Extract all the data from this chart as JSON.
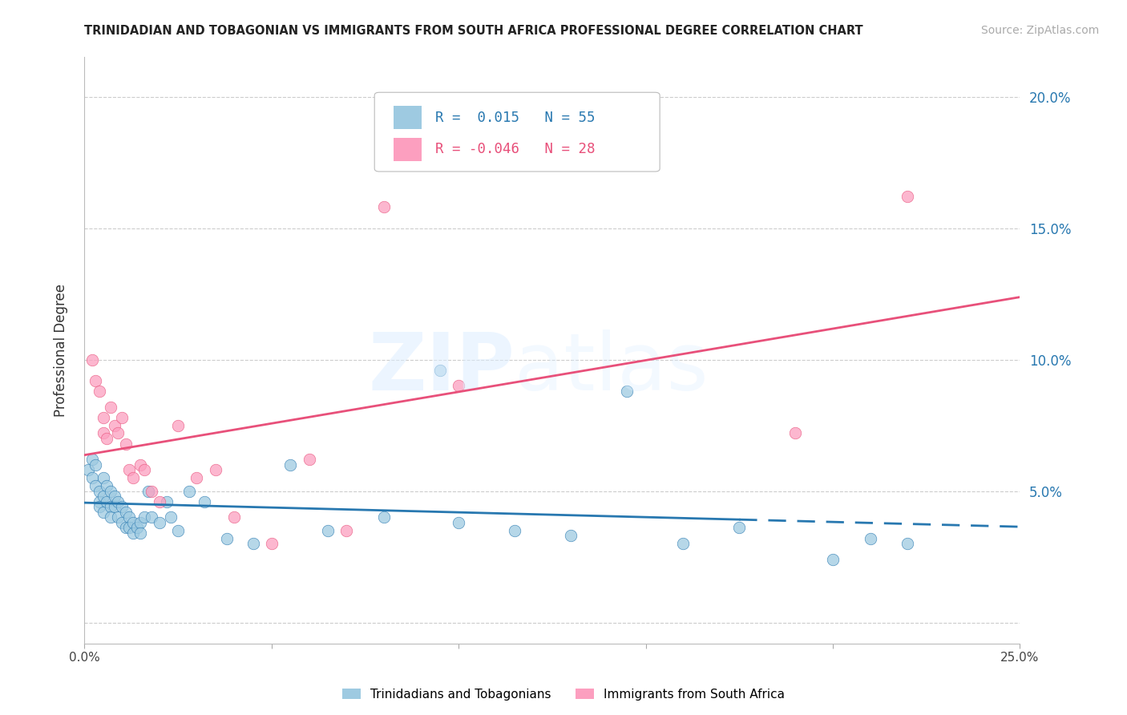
{
  "title": "TRINIDADIAN AND TOBAGONIAN VS IMMIGRANTS FROM SOUTH AFRICA PROFESSIONAL DEGREE CORRELATION CHART",
  "source": "Source: ZipAtlas.com",
  "ylabel": "Professional Degree",
  "xlim": [
    0.0,
    0.25
  ],
  "ylim": [
    -0.008,
    0.215
  ],
  "ytick_values": [
    0.0,
    0.05,
    0.1,
    0.15,
    0.2
  ],
  "ytick_labels": [
    "",
    "5.0%",
    "10.0%",
    "15.0%",
    "20.0%"
  ],
  "xtick_values": [
    0.0,
    0.05,
    0.1,
    0.15,
    0.2,
    0.25
  ],
  "xtick_labels": [
    "0.0%",
    "",
    "",
    "",
    "",
    "25.0%"
  ],
  "legend1_label": "Trinidadians and Tobagonians",
  "legend2_label": "Immigrants from South Africa",
  "r1": "0.015",
  "n1": "55",
  "r2": "-0.046",
  "n2": "28",
  "color_blue": "#9ecae1",
  "color_pink": "#fc9fbf",
  "color_blue_dark": "#2878b0",
  "color_pink_dark": "#e8507a",
  "blue_x": [
    0.001,
    0.002,
    0.002,
    0.003,
    0.003,
    0.004,
    0.004,
    0.004,
    0.005,
    0.005,
    0.005,
    0.006,
    0.006,
    0.007,
    0.007,
    0.007,
    0.008,
    0.008,
    0.009,
    0.009,
    0.01,
    0.01,
    0.011,
    0.011,
    0.012,
    0.012,
    0.013,
    0.013,
    0.014,
    0.015,
    0.015,
    0.016,
    0.017,
    0.018,
    0.02,
    0.022,
    0.023,
    0.025,
    0.028,
    0.032,
    0.038,
    0.045,
    0.055,
    0.065,
    0.08,
    0.095,
    0.1,
    0.115,
    0.13,
    0.145,
    0.16,
    0.175,
    0.2,
    0.21,
    0.22
  ],
  "blue_y": [
    0.058,
    0.062,
    0.055,
    0.06,
    0.052,
    0.05,
    0.046,
    0.044,
    0.055,
    0.048,
    0.042,
    0.052,
    0.046,
    0.05,
    0.044,
    0.04,
    0.048,
    0.044,
    0.046,
    0.04,
    0.044,
    0.038,
    0.042,
    0.036,
    0.04,
    0.036,
    0.038,
    0.034,
    0.036,
    0.038,
    0.034,
    0.04,
    0.05,
    0.04,
    0.038,
    0.046,
    0.04,
    0.035,
    0.05,
    0.046,
    0.032,
    0.03,
    0.06,
    0.035,
    0.04,
    0.096,
    0.038,
    0.035,
    0.033,
    0.088,
    0.03,
    0.036,
    0.024,
    0.032,
    0.03
  ],
  "pink_x": [
    0.002,
    0.003,
    0.004,
    0.005,
    0.005,
    0.006,
    0.007,
    0.008,
    0.009,
    0.01,
    0.011,
    0.012,
    0.013,
    0.015,
    0.016,
    0.018,
    0.02,
    0.025,
    0.03,
    0.035,
    0.04,
    0.05,
    0.06,
    0.07,
    0.08,
    0.1,
    0.19,
    0.22
  ],
  "pink_y": [
    0.1,
    0.092,
    0.088,
    0.078,
    0.072,
    0.07,
    0.082,
    0.075,
    0.072,
    0.078,
    0.068,
    0.058,
    0.055,
    0.06,
    0.058,
    0.05,
    0.046,
    0.075,
    0.055,
    0.058,
    0.04,
    0.03,
    0.062,
    0.035,
    0.158,
    0.09,
    0.072,
    0.162
  ]
}
